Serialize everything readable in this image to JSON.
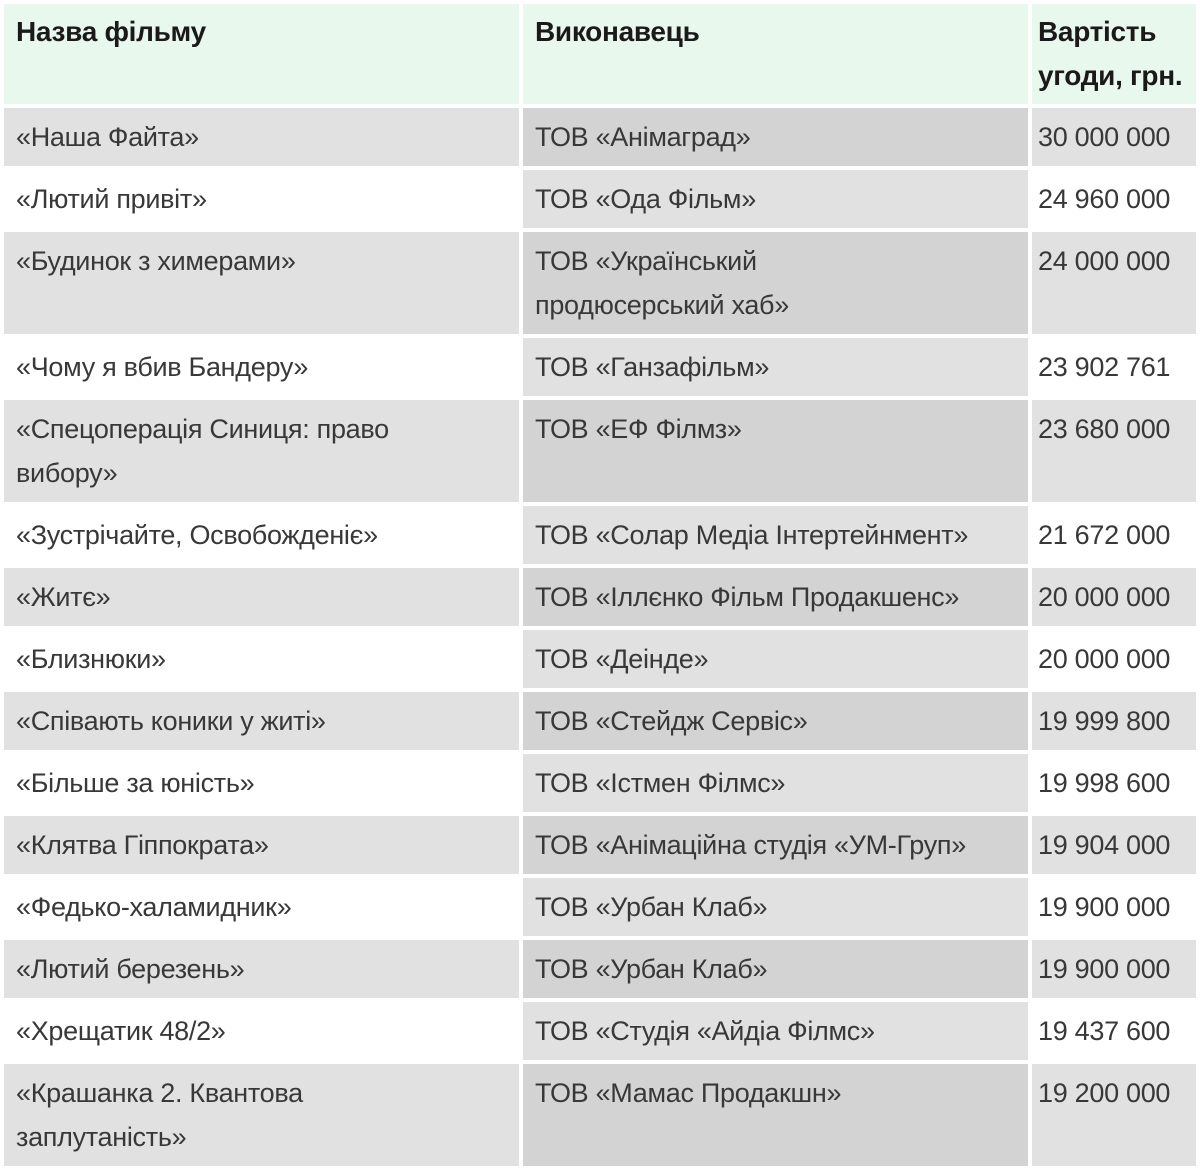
{
  "table": {
    "columns": [
      {
        "label": "Назва фільму"
      },
      {
        "label": "Виконавець"
      },
      {
        "label": "Вартість угоди, грн."
      }
    ],
    "rows": [
      {
        "title": "«Наша Файта»",
        "contractor": "ТОВ «Анімаград»",
        "value": "30 000 000"
      },
      {
        "title": "«Лютий привіт»",
        "contractor": "ТОВ «Ода Фільм»",
        "value": "24 960 000"
      },
      {
        "title": "«Будинок з химерами»",
        "contractor": "ТОВ «Український\nпродюсерський хаб»",
        "value": "24 000 000"
      },
      {
        "title": "«Чому я вбив Бандеру»",
        "contractor": "ТОВ «Ганзафільм»",
        "value": "23 902 761"
      },
      {
        "title": "«Спецоперація Синиця: право\nвибору»",
        "contractor": "ТОВ «ЕФ Філмз»",
        "value": "23 680 000"
      },
      {
        "title": "«Зустрічайте, Освобожденіє»",
        "contractor": "ТОВ «Солар Медіа Інтертейнмент»",
        "value": "21 672 000"
      },
      {
        "title": "«Житє»",
        "contractor": "ТОВ «Іллєнко Фільм Продакшенс»",
        "value": "20 000 000"
      },
      {
        "title": "«Близнюки»",
        "contractor": "ТОВ «Деінде»",
        "value": "20 000 000"
      },
      {
        "title": "«Співають коники у житі»",
        "contractor": "ТОВ «Стейдж Сервіс»",
        "value": "19 999 800"
      },
      {
        "title": "«Більше за юність»",
        "contractor": "ТОВ «Істмен Філмс»",
        "value": "19 998 600"
      },
      {
        "title": "«Клятва Гіппократа»",
        "contractor": "ТОВ «Анімаційна студія «УМ-Груп»",
        "value": "19 904 000"
      },
      {
        "title": "«Федько-халамидник»",
        "contractor": "ТОВ «Урбан Клаб»",
        "value": "19 900 000"
      },
      {
        "title": "«Лютий березень»",
        "contractor": "ТОВ «Урбан Клаб»",
        "value": "19 900 000"
      },
      {
        "title": "«Хрещатик 48/2»",
        "contractor": "ТОВ «Студія «Айдіа Філмс»",
        "value": "19 437 600"
      },
      {
        "title": "«Крашанка 2. Квантова\nзаплутаність»",
        "contractor": "ТОВ «Мамас Продакшн»",
        "value": "19 200 000"
      }
    ]
  },
  "colors": {
    "header_bg": "#e9f8ec",
    "header_text": "#1a1a1a",
    "body_text": "#383838",
    "row_bg": "#ffffff",
    "row_contractor_bg": "#e1e1e1",
    "row_alt_bg": "#e1e1e1",
    "row_alt_contractor_bg": "#d3d3d3"
  }
}
